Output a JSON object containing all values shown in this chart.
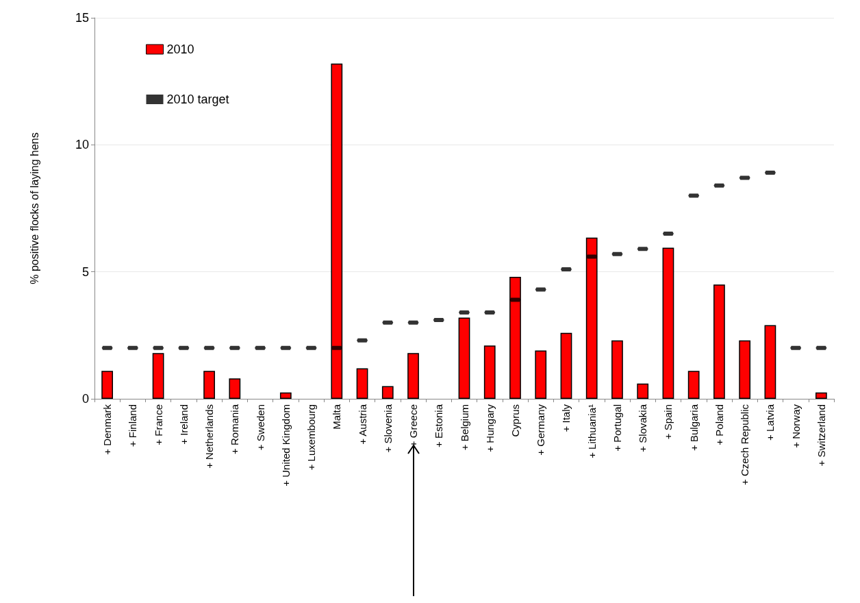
{
  "chart_data": {
    "type": "bar",
    "ylabel": "% positive flocks of laying hens",
    "categories": [
      "+ Denmark",
      "+ Finland",
      "+ France",
      "+ Ireland",
      "+ Netherlands",
      "+ Romania",
      "+ Sweden",
      "+ United Kingdom",
      "+ Luxembourg",
      "Malta",
      "+ Austria",
      "+ Slovenia",
      "+ Greece",
      "+ Estonia",
      "+ Belgium",
      "+ Hungary",
      "Cyprus",
      "+ Germany",
      "+ Italy",
      "+ Lithuania¹",
      "+ Portugal",
      "+ Slovakia",
      "+ Spain",
      "+ Bulgaria",
      "+ Poland",
      "+ Czech Republic",
      "+ Latvia",
      "+ Norway",
      "+ Switzerland"
    ],
    "series": [
      {
        "name": "2010",
        "color": "#ff0000",
        "values": [
          1.1,
          0,
          1.8,
          0,
          1.1,
          0.8,
          0,
          0.25,
          0,
          13.2,
          1.2,
          0.5,
          1.8,
          0,
          3.2,
          2.1,
          4.8,
          1.9,
          2.6,
          6.35,
          2.3,
          0.6,
          5.95,
          1.1,
          4.5,
          2.3,
          2.9,
          0,
          0.25
        ]
      },
      {
        "name": "2010 target",
        "type": "scatter",
        "color": "#000000",
        "values": [
          2,
          2,
          2,
          2,
          2,
          2,
          2,
          2,
          2,
          2,
          2.3,
          3.0,
          3.0,
          3.1,
          3.4,
          3.4,
          3.9,
          4.3,
          5.1,
          5.6,
          5.7,
          5.9,
          6.5,
          8.0,
          8.4,
          8.7,
          8.9,
          2,
          2
        ]
      }
    ],
    "ylim": [
      0,
      15
    ],
    "yticks": [
      0,
      5,
      10,
      15
    ],
    "grid": "y",
    "legend": "top left"
  }
}
